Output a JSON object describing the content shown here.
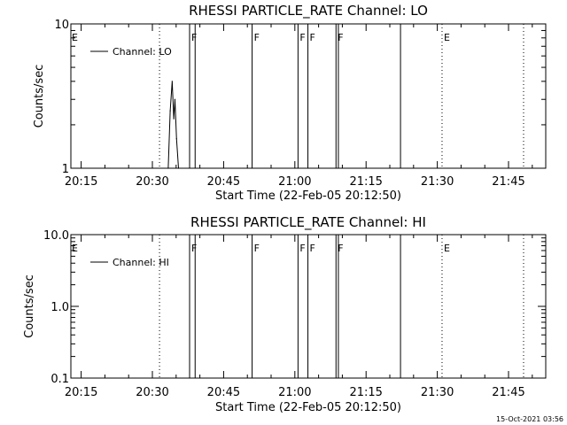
{
  "colors": {
    "background": "#ffffff",
    "foreground": "#000000"
  },
  "timestamp": "15-Oct-2021 03:56",
  "chart_data": [
    {
      "type": "line",
      "title": "RHESSI PARTICLE_RATE Channel: LO",
      "xlabel": "Start Time (22-Feb-05 20:12:50)",
      "ylabel": "Counts/sec",
      "yscale": "log",
      "ylim": [
        1,
        10
      ],
      "xlim": [
        "20:12:50",
        "21:52:50"
      ],
      "xticks": [
        "20:15",
        "20:30",
        "20:45",
        "21:00",
        "21:15",
        "21:30",
        "21:45"
      ],
      "yticks": [
        "1",
        "10"
      ],
      "legend": {
        "entries": [
          "Channel: LO"
        ],
        "placement": "top-left"
      },
      "series": [
        {
          "name": "Channel: LO",
          "x": [
            "20:33:20",
            "20:33:45",
            "20:34:10",
            "20:34:30",
            "20:34:45",
            "20:35:05",
            "20:35:30"
          ],
          "values": [
            1.0,
            2.5,
            4.0,
            2.2,
            3.0,
            1.6,
            1.0
          ]
        }
      ],
      "event_lines": [
        {
          "time": "20:31:30",
          "style": "dotted",
          "label": ""
        },
        {
          "time": "20:37:50",
          "style": "solid",
          "label": "F"
        },
        {
          "time": "20:39:00",
          "style": "solid",
          "label": ""
        },
        {
          "time": "20:51:00",
          "style": "solid",
          "label": "F"
        },
        {
          "time": "21:00:40",
          "style": "solid",
          "label": "F"
        },
        {
          "time": "21:02:45",
          "style": "solid",
          "label": "F"
        },
        {
          "time": "21:08:40",
          "style": "solid",
          "label": "F"
        },
        {
          "time": "21:09:10",
          "style": "solid",
          "label": ""
        },
        {
          "time": "21:22:15",
          "style": "solid",
          "label": ""
        },
        {
          "time": "21:31:00",
          "style": "dotted",
          "label": "E"
        },
        {
          "time": "21:48:10",
          "style": "dotted",
          "label": ""
        }
      ],
      "left_edge_label": "E"
    },
    {
      "type": "line",
      "title": "RHESSI PARTICLE_RATE Channel: HI",
      "xlabel": "Start Time (22-Feb-05 20:12:50)",
      "ylabel": "Counts/sec",
      "yscale": "log",
      "ylim": [
        0.1,
        10
      ],
      "xlim": [
        "20:12:50",
        "21:52:50"
      ],
      "xticks": [
        "20:15",
        "20:30",
        "20:45",
        "21:00",
        "21:15",
        "21:30",
        "21:45"
      ],
      "yticks": [
        "0.1",
        "1.0",
        "10.0"
      ],
      "legend": {
        "entries": [
          "Channel: HI"
        ],
        "placement": "top-left"
      },
      "series": [
        {
          "name": "Channel: HI",
          "x": [],
          "values": []
        }
      ],
      "event_lines": [
        {
          "time": "20:31:30",
          "style": "dotted",
          "label": ""
        },
        {
          "time": "20:37:50",
          "style": "solid",
          "label": "F"
        },
        {
          "time": "20:39:00",
          "style": "solid",
          "label": ""
        },
        {
          "time": "20:51:00",
          "style": "solid",
          "label": "F"
        },
        {
          "time": "21:00:40",
          "style": "solid",
          "label": "F"
        },
        {
          "time": "21:02:45",
          "style": "solid",
          "label": "F"
        },
        {
          "time": "21:08:40",
          "style": "solid",
          "label": "F"
        },
        {
          "time": "21:09:10",
          "style": "solid",
          "label": ""
        },
        {
          "time": "21:22:15",
          "style": "solid",
          "label": ""
        },
        {
          "time": "21:31:00",
          "style": "dotted",
          "label": "E"
        },
        {
          "time": "21:48:10",
          "style": "dotted",
          "label": ""
        }
      ],
      "left_edge_label": "E"
    }
  ]
}
